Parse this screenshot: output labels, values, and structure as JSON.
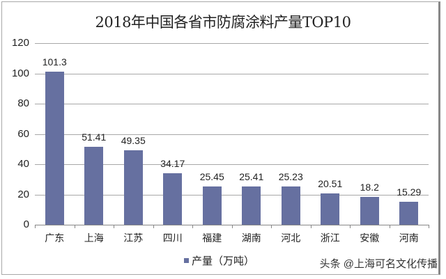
{
  "title": "2018年中国各省市防腐涂料产量TOP10",
  "legend": {
    "label": "产量（万吨）",
    "color": "#6670a0"
  },
  "watermark": "头条 @上海可名文化传播",
  "chart_data": {
    "type": "bar",
    "title": "2018年中国各省市防腐涂料产量TOP10",
    "xlabel": "",
    "ylabel": "",
    "ylim": [
      0,
      120
    ],
    "yticks": [
      0,
      20,
      40,
      60,
      80,
      100,
      120
    ],
    "grid": true,
    "legend_position": "bottom",
    "categories": [
      "广东",
      "上海",
      "江苏",
      "四川",
      "福建",
      "湖南",
      "河北",
      "浙江",
      "安徽",
      "河南"
    ],
    "series": [
      {
        "name": "产量（万吨）",
        "color": "#6670a0",
        "values": [
          101.3,
          51.41,
          49.35,
          34.17,
          25.45,
          25.41,
          25.23,
          20.51,
          18.2,
          15.29
        ]
      }
    ],
    "value_labels": [
      "101.3",
      "51.41",
      "49.35",
      "34.17",
      "25.45",
      "25.41",
      "25.23",
      "20.51",
      "18.2",
      "15.29"
    ]
  }
}
